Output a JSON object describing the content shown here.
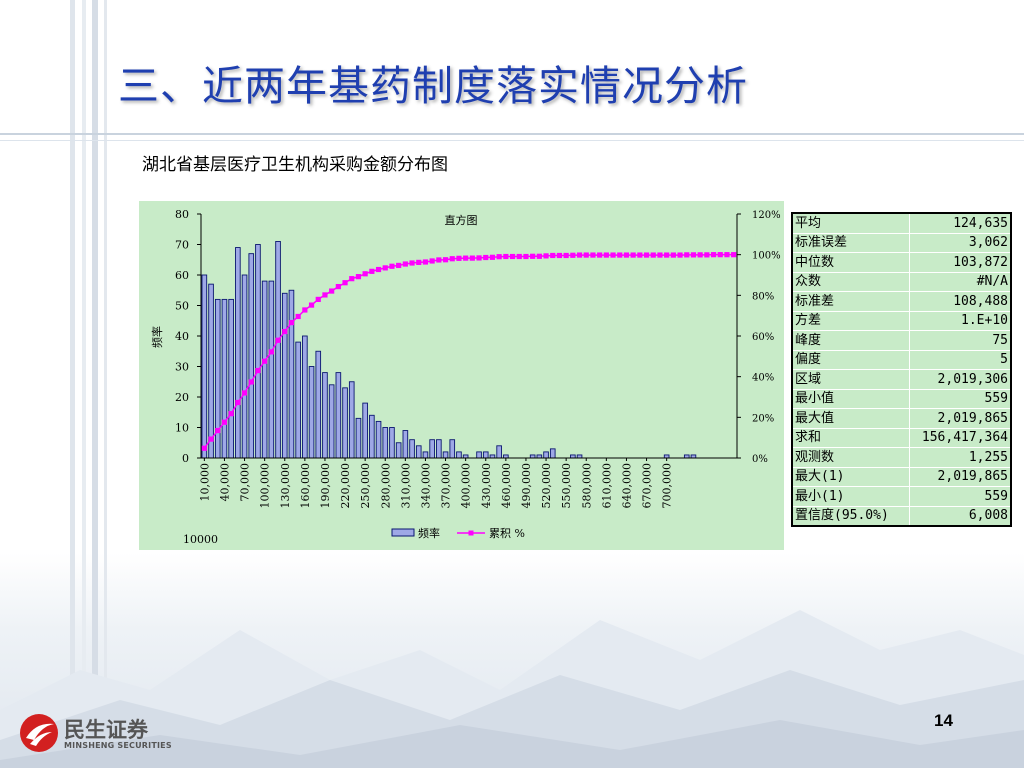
{
  "slide": {
    "title": "三、近两年基药制度落实情况分析",
    "subtitle": "湖北省基层医疗卫生机构采购金额分布图",
    "page_number": "14",
    "logo": {
      "name": "民生证券",
      "english": "MINSHENG SECURITIES"
    }
  },
  "colors": {
    "title": "#1f3fb0",
    "panel": "#c8ebc8",
    "bar_fill": "#9ea8e6",
    "bar_stroke": "#0a1670",
    "cumulative": "#ff00ff",
    "logo_red": "#d22020"
  },
  "chart_data": {
    "type": "bar",
    "title": "直方图",
    "ylabel": "频率",
    "y2label": "",
    "ylim": [
      0,
      80
    ],
    "y2lim": [
      0,
      1.2
    ],
    "yticks": [
      "0",
      "10",
      "20",
      "30",
      "40",
      "50",
      "60",
      "70",
      "80"
    ],
    "y2ticks": [
      "0%",
      "20%",
      "40%",
      "60%",
      "80%",
      "100%",
      "120%"
    ],
    "xtick_labels": [
      "10,000",
      "40,000",
      "70,000",
      "100,000",
      "130,000",
      "160,000",
      "190,000",
      "220,000",
      "250,000",
      "280,000",
      "310,000",
      "340,000",
      "370,000",
      "400,000",
      "430,000",
      "460,000",
      "490,000",
      "520,000",
      "550,000",
      "580,000",
      "610,000",
      "640,000",
      "670,000",
      "700,000"
    ],
    "corner_label": "10000",
    "legend_position": "bottom",
    "series": [
      {
        "name": "频率",
        "kind": "bar",
        "values": [
          60,
          57,
          52,
          52,
          52,
          69,
          60,
          67,
          70,
          58,
          58,
          71,
          54,
          55,
          38,
          40,
          30,
          35,
          28,
          24,
          28,
          23,
          25,
          13,
          18,
          14,
          12,
          10,
          10,
          5,
          9,
          6,
          4,
          2,
          6,
          6,
          2,
          6,
          2,
          1,
          0,
          2,
          2,
          1,
          4,
          1,
          0,
          0,
          0,
          1,
          1,
          2,
          3,
          0,
          0,
          1,
          1,
          0,
          0,
          0,
          0,
          0,
          0,
          0,
          0,
          0,
          0,
          0,
          0,
          1,
          0,
          0,
          1,
          1,
          0,
          0,
          0,
          0,
          0,
          0
        ]
      },
      {
        "name": "累积 %",
        "kind": "line",
        "values": [
          0.048,
          0.093,
          0.135,
          0.176,
          0.218,
          0.273,
          0.32,
          0.374,
          0.43,
          0.476,
          0.522,
          0.579,
          0.622,
          0.666,
          0.696,
          0.728,
          0.752,
          0.78,
          0.802,
          0.821,
          0.843,
          0.862,
          0.882,
          0.892,
          0.906,
          0.918,
          0.927,
          0.935,
          0.943,
          0.947,
          0.954,
          0.959,
          0.962,
          0.964,
          0.969,
          0.974,
          0.975,
          0.98,
          0.982,
          0.983,
          0.983,
          0.984,
          0.986,
          0.987,
          0.99,
          0.991,
          0.991,
          0.991,
          0.991,
          0.992,
          0.992,
          0.994,
          0.996,
          0.996,
          0.996,
          0.997,
          0.998,
          0.998,
          0.998,
          0.998,
          0.998,
          0.998,
          0.998,
          0.998,
          0.998,
          0.998,
          0.998,
          0.998,
          0.998,
          0.998,
          0.998,
          0.998,
          0.999,
          0.999,
          0.999,
          0.999,
          1.0,
          1.0,
          1.0,
          1.0
        ]
      }
    ]
  },
  "stats_table": {
    "rows": [
      {
        "label": "平均",
        "value": "124,635"
      },
      {
        "label": "标准误差",
        "value": "3,062"
      },
      {
        "label": "中位数",
        "value": "103,872"
      },
      {
        "label": "众数",
        "value": "#N/A"
      },
      {
        "label": "标准差",
        "value": "108,488"
      },
      {
        "label": "方差",
        "value": "1.E+10"
      },
      {
        "label": "峰度",
        "value": "75"
      },
      {
        "label": "偏度",
        "value": "5"
      },
      {
        "label": "区域",
        "value": "2,019,306"
      },
      {
        "label": "最小值",
        "value": "559"
      },
      {
        "label": "最大值",
        "value": "2,019,865"
      },
      {
        "label": "求和",
        "value": "156,417,364"
      },
      {
        "label": "观测数",
        "value": "1,255"
      },
      {
        "label": "最大(1)",
        "value": "2,019,865"
      },
      {
        "label": "最小(1)",
        "value": "559"
      },
      {
        "label": "置信度(95.0%)",
        "value": "6,008"
      }
    ]
  }
}
